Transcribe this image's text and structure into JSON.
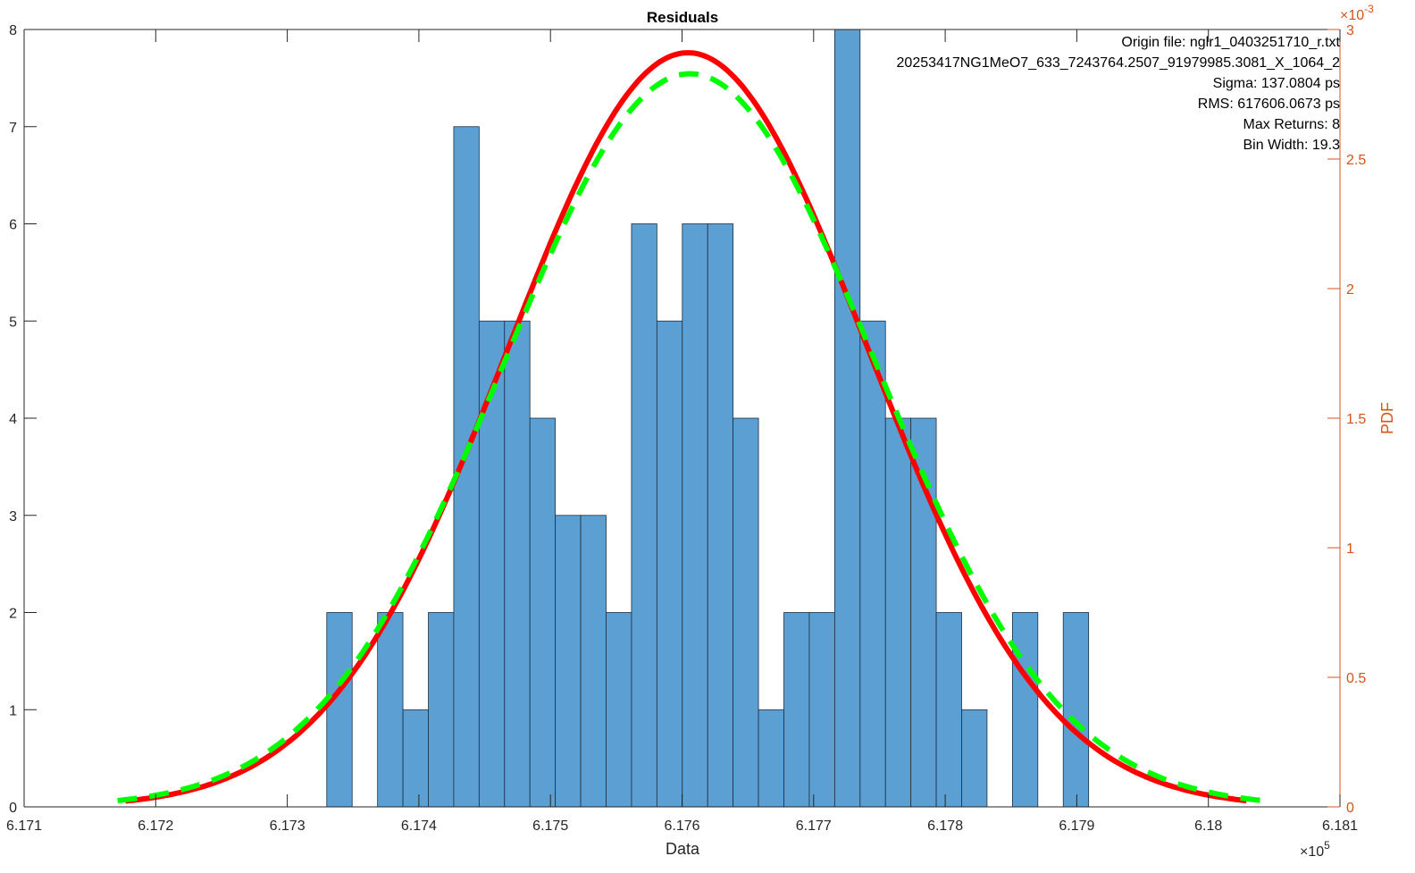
{
  "chart_data": {
    "type": "bar",
    "title": "Residuals",
    "xlabel": "Data",
    "x_exponent_label": "×10",
    "x_exponent": "5",
    "ylabel_left": "",
    "ylabel_right": "PDF",
    "y_right_exponent_label": "×10",
    "y_right_exponent": "-3",
    "xlim": [
      617100,
      618100
    ],
    "ylim_left": [
      0,
      8
    ],
    "ylim_right": [
      0,
      0.003
    ],
    "x_ticks": [
      617100,
      617200,
      617300,
      617400,
      617500,
      617600,
      617700,
      617800,
      617900,
      618000,
      618100
    ],
    "x_tick_labels": [
      "6.171",
      "6.172",
      "6.173",
      "6.174",
      "6.175",
      "6.176",
      "6.177",
      "6.178",
      "6.179",
      "6.18",
      "6.181"
    ],
    "y_left_ticks": [
      0,
      1,
      2,
      3,
      4,
      5,
      6,
      7,
      8
    ],
    "y_left_tick_labels": [
      "0",
      "1",
      "2",
      "3",
      "4",
      "5",
      "6",
      "7",
      "8"
    ],
    "y_right_ticks": [
      0,
      0.0005,
      0.001,
      0.0015,
      0.002,
      0.0025,
      0.003
    ],
    "y_right_tick_labels": [
      "0",
      "0.5",
      "1",
      "1.5",
      "2",
      "2.5",
      "3"
    ],
    "histogram": {
      "bin_start": 617330,
      "bin_width": 19.3,
      "counts": [
        2,
        0,
        2,
        1,
        2,
        7,
        5,
        5,
        4,
        3,
        3,
        2,
        6,
        5,
        6,
        6,
        4,
        1,
        2,
        2,
        8,
        5,
        4,
        4,
        2,
        1,
        0,
        2,
        0,
        2
      ],
      "color": "#5B9FD3"
    },
    "series": [
      {
        "name": "Normal PDF fit",
        "style": "solid",
        "color": "#FF0000",
        "mu": 617604.5,
        "sigma": 137.08,
        "x_range": [
          617177,
          618029
        ]
      },
      {
        "name": "Reference PDF",
        "style": "dashed",
        "color": "#00FF00",
        "mu": 617606,
        "sigma": 141,
        "x_range": [
          617171,
          618041
        ]
      }
    ],
    "annotations": [
      "Origin file: nglr1_0403251710_r.txt",
      "20253417NG1MeO7_633_7243764.2507_91979985.3081_X_1064_2",
      "Sigma: 137.0804 ps",
      "RMS: 617606.0673 ps",
      "Max Returns: 8",
      "Bin Width: 19.3"
    ],
    "grid": false
  }
}
